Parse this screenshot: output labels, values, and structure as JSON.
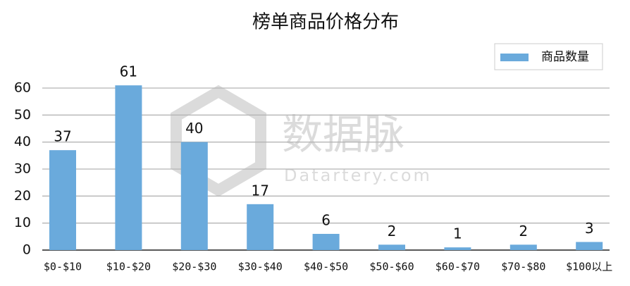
{
  "chart_data": {
    "type": "bar",
    "title": "榜单商品价格分布",
    "categories": [
      "$0-$10",
      "$10-$20",
      "$20-$30",
      "$30-$40",
      "$40-$50",
      "$50-$60",
      "$60-$70",
      "$70-$80",
      "$100以上"
    ],
    "series": [
      {
        "name": "商品数量",
        "color": "#6aaadc",
        "values": [
          37,
          61,
          40,
          17,
          6,
          2,
          1,
          2,
          3
        ]
      }
    ],
    "ylim": [
      0,
      60
    ],
    "yticks": [
      0,
      10,
      20,
      30,
      40,
      50,
      60
    ],
    "grid": true,
    "legend": "top-right",
    "watermark": "数据脉",
    "watermark_subtitle": "Datartery.com"
  }
}
